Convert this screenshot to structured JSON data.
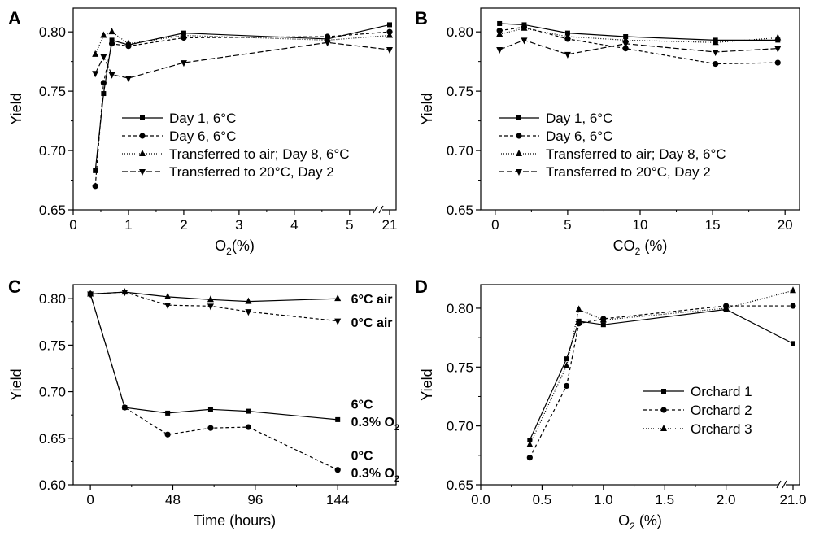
{
  "chart_data": [
    {
      "panel": "A",
      "type": "line",
      "xlabel": "O",
      "xlabel_sub": "2",
      "xlabel_suffix": "(%)",
      "ylabel": "Yield",
      "ylim": [
        0.65,
        0.82
      ],
      "xlim": [
        0,
        5.4
      ],
      "x_axis_break": "between 5 and 21",
      "x_ticks": [
        0,
        1,
        2,
        3,
        4,
        5
      ],
      "x_tick_labels": [
        "0",
        "1",
        "2",
        "3",
        "4",
        "5"
      ],
      "break_tick_label": "21",
      "y_ticks": [
        0.65,
        0.7,
        0.75,
        0.8
      ],
      "y_tick_labels": [
        "0.65",
        "0.70",
        "0.75",
        "0.80"
      ],
      "legend_position": "bottom-center",
      "series": [
        {
          "name": "Day 1, 6°C",
          "marker": "square",
          "dash": "",
          "x": [
            0.4,
            0.55,
            0.7,
            1,
            2,
            4.6,
            21
          ],
          "y": [
            0.683,
            0.748,
            0.793,
            0.789,
            0.799,
            0.794,
            0.806
          ]
        },
        {
          "name": "Day 6, 6°C",
          "marker": "circle",
          "dash": "4,3",
          "x": [
            0.4,
            0.55,
            0.7,
            1,
            2,
            4.6,
            21
          ],
          "y": [
            0.67,
            0.757,
            0.79,
            0.788,
            0.795,
            0.796,
            0.8
          ]
        },
        {
          "name": "Transferred to air; Day 8, 6°C",
          "marker": "triangle-up",
          "dash": "1,2",
          "x": [
            0.4,
            0.55,
            0.7,
            1,
            2,
            4.6,
            21
          ],
          "y": [
            0.781,
            0.797,
            0.8,
            0.79,
            0.797,
            0.793,
            0.797
          ]
        },
        {
          "name": "Transferred to 20°C, Day 2",
          "marker": "triangle-down",
          "dash": "7,3",
          "x": [
            0.4,
            0.55,
            0.7,
            1,
            2,
            4.6,
            21
          ],
          "y": [
            0.765,
            0.779,
            0.764,
            0.761,
            0.774,
            0.791,
            0.785
          ]
        }
      ]
    },
    {
      "panel": "B",
      "type": "line",
      "xlabel": "CO",
      "xlabel_sub": "2",
      "xlabel_suffix": " (%)",
      "ylabel": "Yield",
      "ylim": [
        0.65,
        0.82
      ],
      "xlim": [
        -1,
        21
      ],
      "x_ticks": [
        0,
        5,
        10,
        15,
        20
      ],
      "x_tick_labels": [
        "0",
        "5",
        "10",
        "15",
        "20"
      ],
      "y_ticks": [
        0.65,
        0.7,
        0.75,
        0.8
      ],
      "y_tick_labels": [
        "0.65",
        "0.70",
        "0.75",
        "0.80"
      ],
      "legend_position": "bottom-right",
      "series": [
        {
          "name": "Day 1, 6°C",
          "marker": "square",
          "dash": "",
          "x": [
            0.3,
            2,
            5,
            9,
            15.2,
            19.5
          ],
          "y": [
            0.807,
            0.806,
            0.799,
            0.796,
            0.793,
            0.793
          ]
        },
        {
          "name": "Day 6, 6°C",
          "marker": "circle",
          "dash": "4,3",
          "x": [
            0.3,
            2,
            5,
            9,
            15.2,
            19.5
          ],
          "y": [
            0.801,
            0.804,
            0.794,
            0.786,
            0.773,
            0.774
          ]
        },
        {
          "name": "Transferred to air; Day 8, 6°C",
          "marker": "triangle-up",
          "dash": "1,2",
          "x": [
            0.3,
            2,
            5,
            9,
            15.2,
            19.5
          ],
          "y": [
            0.798,
            0.803,
            0.796,
            0.793,
            0.791,
            0.795
          ]
        },
        {
          "name": "Transferred to 20°C, Day 2",
          "marker": "triangle-down",
          "dash": "7,3",
          "x": [
            0.3,
            2,
            5,
            9,
            15.2,
            19.5
          ],
          "y": [
            0.785,
            0.793,
            0.781,
            0.79,
            0.783,
            0.786
          ]
        }
      ]
    },
    {
      "panel": "C",
      "type": "line",
      "xlabel": "Time (hours)",
      "ylabel": "Yield",
      "ylim": [
        0.6,
        0.815
      ],
      "xlim": [
        -10,
        178
      ],
      "x_ticks": [
        0,
        48,
        96,
        144
      ],
      "x_tick_labels": [
        "0",
        "48",
        "96",
        "144"
      ],
      "y_ticks": [
        0.6,
        0.65,
        0.7,
        0.75,
        0.8
      ],
      "y_tick_labels": [
        "0.60",
        "0.65",
        "0.70",
        "0.75",
        "0.80"
      ],
      "series": [
        {
          "marker": "triangle-up",
          "dash": "",
          "x": [
            0,
            20,
            45,
            70,
            92,
            144
          ],
          "y": [
            0.805,
            0.807,
            0.802,
            0.799,
            0.797,
            0.8
          ]
        },
        {
          "marker": "triangle-down",
          "dash": "4,3",
          "x": [
            0,
            20,
            45,
            70,
            92,
            144
          ],
          "y": [
            0.805,
            0.807,
            0.793,
            0.792,
            0.786,
            0.776
          ]
        },
        {
          "marker": "square",
          "dash": "",
          "x": [
            0,
            20,
            45,
            70,
            92,
            144
          ],
          "y": [
            0.805,
            0.683,
            0.677,
            0.681,
            0.679,
            0.67
          ]
        },
        {
          "marker": "circle",
          "dash": "4,3",
          "x": [
            0,
            20,
            45,
            70,
            92,
            144
          ],
          "y": [
            0.805,
            0.683,
            0.654,
            0.661,
            0.662,
            0.616
          ]
        }
      ],
      "annotations": [
        {
          "text": "6°C air",
          "x": 148,
          "y": 0.8
        },
        {
          "text": "0°C air",
          "x": 148,
          "y": 0.775
        },
        {
          "text": "6°C",
          "x": 148,
          "y": 0.687
        },
        {
          "text": "0.3% O",
          "sub": "2",
          "x": 148,
          "y": 0.668
        },
        {
          "text": "0°C",
          "x": 148,
          "y": 0.632
        },
        {
          "text": "0.3% O",
          "sub": "2",
          "x": 148,
          "y": 0.613
        }
      ]
    },
    {
      "panel": "D",
      "type": "line",
      "xlabel": "O",
      "xlabel_sub": "2",
      "xlabel_suffix": " (%)",
      "ylabel": "Yield",
      "ylim": [
        0.65,
        0.82
      ],
      "xlim": [
        0,
        2.4
      ],
      "x_axis_break": "between 2.0 and 21.0",
      "x_ticks": [
        0,
        0.5,
        1,
        1.5,
        2
      ],
      "x_tick_labels": [
        "0.0",
        "0.5",
        "1.0",
        "1.5",
        "2.0"
      ],
      "break_tick_label": "21.0",
      "y_ticks": [
        0.65,
        0.7,
        0.75,
        0.8
      ],
      "y_tick_labels": [
        "0.65",
        "0.70",
        "0.75",
        "0.80"
      ],
      "legend_position": "bottom-right",
      "series": [
        {
          "name": "Orchard 1",
          "marker": "square",
          "dash": "",
          "x": [
            0.4,
            0.7,
            0.8,
            1.0,
            2.0,
            21
          ],
          "y": [
            0.688,
            0.757,
            0.789,
            0.786,
            0.799,
            0.77
          ]
        },
        {
          "name": "Orchard 2",
          "marker": "circle",
          "dash": "4,3",
          "x": [
            0.4,
            0.7,
            0.8,
            1.0,
            2.0,
            21
          ],
          "y": [
            0.673,
            0.734,
            0.787,
            0.791,
            0.802,
            0.802
          ]
        },
        {
          "name": "Orchard 3",
          "marker": "triangle-up",
          "dash": "1,2",
          "x": [
            0.4,
            0.7,
            0.8,
            1.0,
            2.0,
            21
          ],
          "y": [
            0.684,
            0.751,
            0.799,
            0.79,
            0.8,
            0.815
          ]
        }
      ]
    }
  ]
}
